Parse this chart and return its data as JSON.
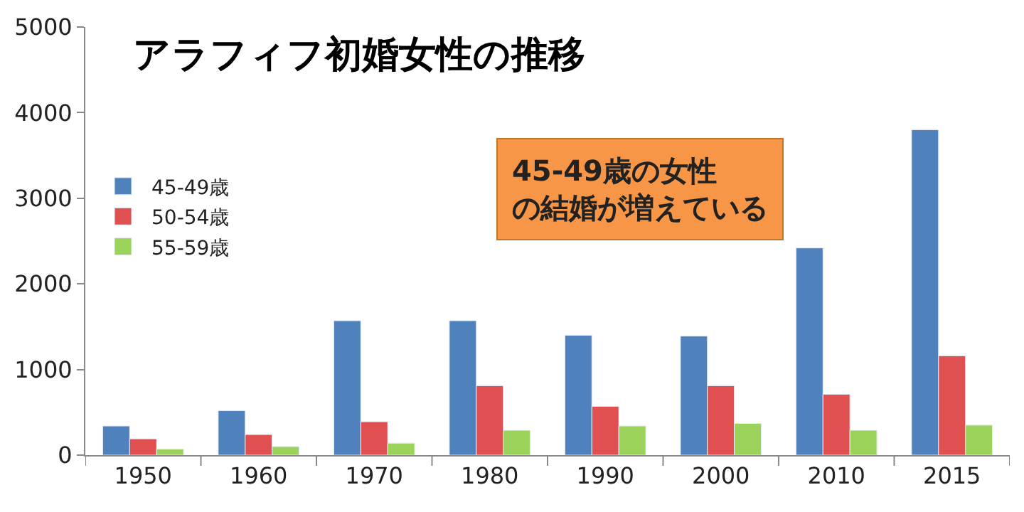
{
  "chart_data": {
    "type": "bar",
    "title": "アラフィフ初婚女性の推移",
    "categories": [
      "1950",
      "1960",
      "1970",
      "1980",
      "1990",
      "2000",
      "2010",
      "2015"
    ],
    "series": [
      {
        "name": "45-49歳",
        "color": "#4f81bd",
        "values": [
          340,
          520,
          1570,
          1570,
          1400,
          1390,
          2420,
          3800
        ]
      },
      {
        "name": "50-54歳",
        "color": "#e05050",
        "values": [
          190,
          240,
          390,
          810,
          570,
          810,
          710,
          1160
        ]
      },
      {
        "name": "55-59歳",
        "color": "#9bd35a",
        "values": [
          70,
          100,
          140,
          290,
          340,
          370,
          290,
          350
        ]
      }
    ],
    "ylim": [
      0,
      5000
    ],
    "yticks": [
      0,
      1000,
      2000,
      3000,
      4000,
      5000
    ],
    "legend": "left",
    "annotations": [
      "45-49歳の女性の結婚が増えている"
    ]
  }
}
